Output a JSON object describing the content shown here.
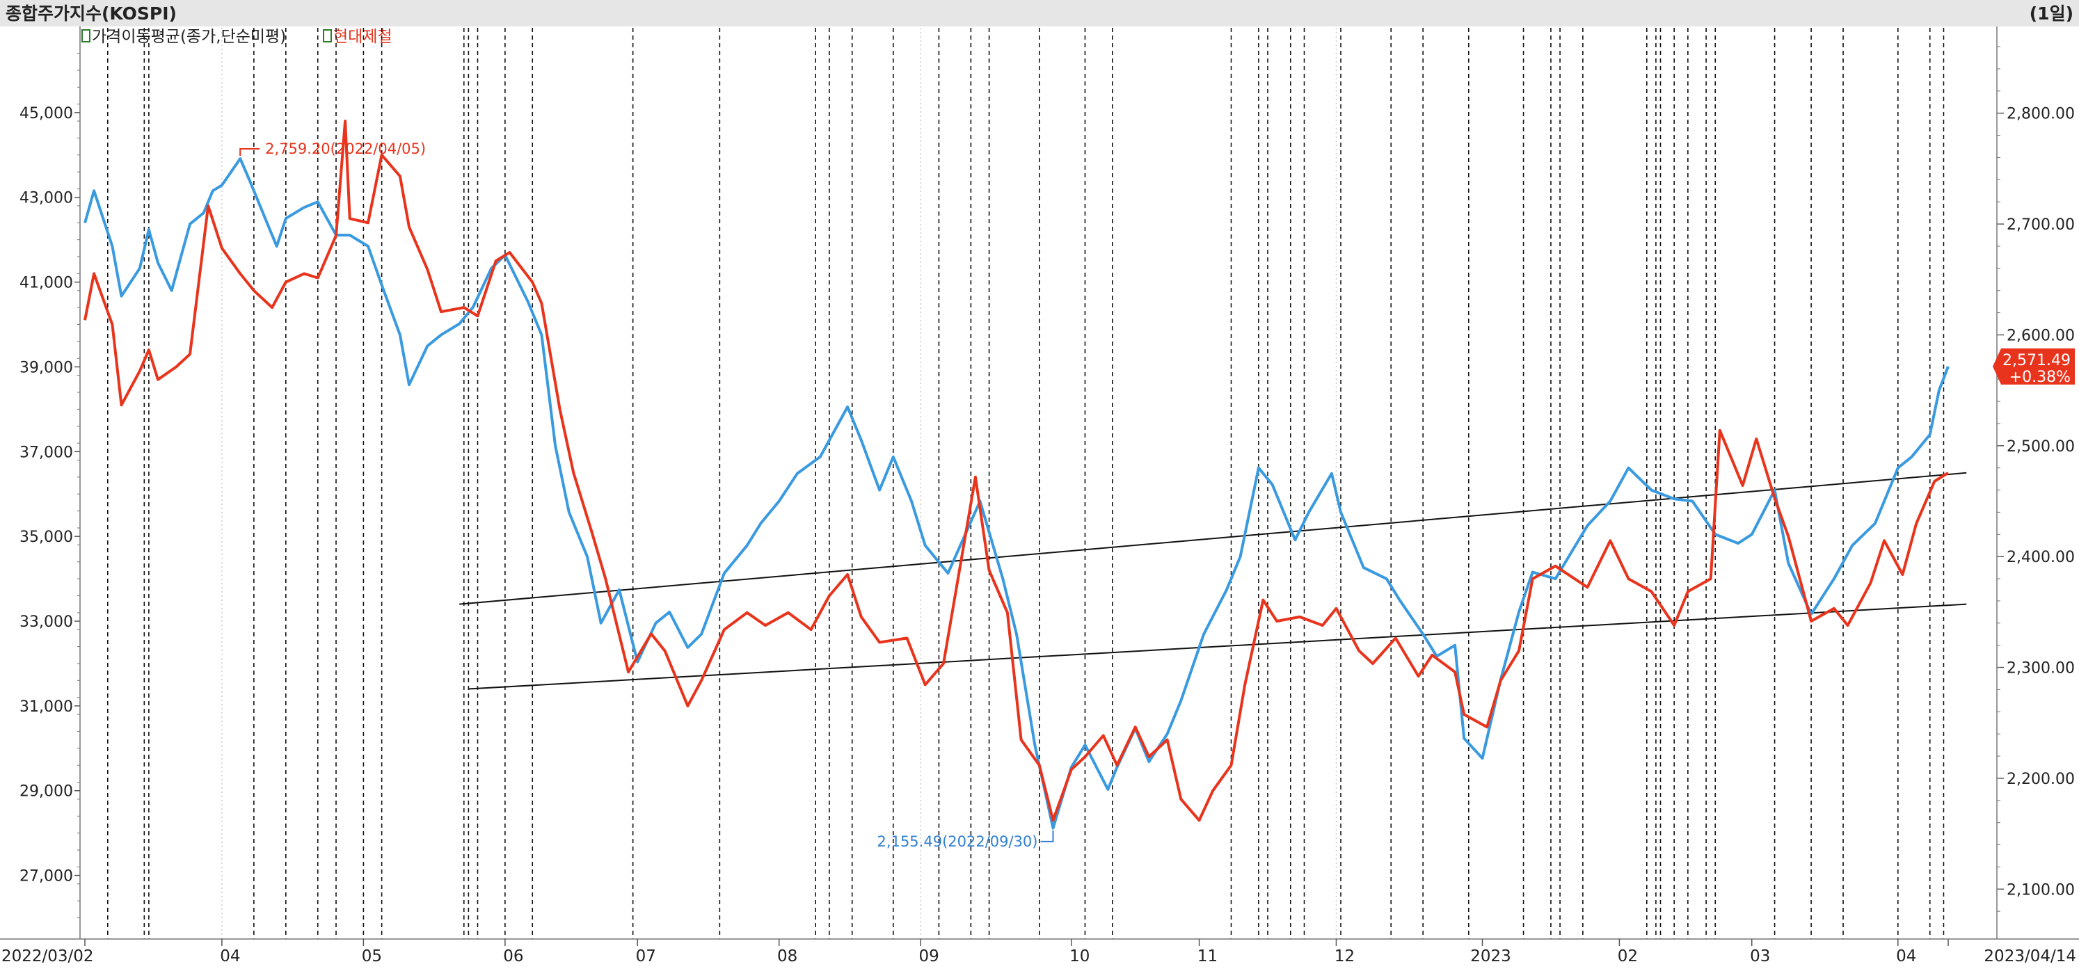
{
  "header": {
    "title": "종합주가지수(KOSPI)",
    "period": "(1일)",
    "legend_ma": "가격이동평균(종가,단순미평)",
    "legend_stock": "현대제철"
  },
  "annotations": {
    "high_label": "2,759.20(2022/04/05)",
    "low_label": "2,155.49(2022/09/30)",
    "price_tag_value": "2,571.49",
    "price_tag_change": "+0.38%"
  },
  "axis": {
    "start_date": "2022/03/02",
    "end_date": "2023/04/14"
  },
  "colors": {
    "kospi": "#3a9ae0",
    "stock": "#e8341c",
    "high_label": "#e8341c",
    "low_label": "#2f7fd3",
    "tag_bg": "#e8341c",
    "header_bg": "#e6e6e6"
  },
  "chart_data": {
    "type": "line",
    "title": "종합주가지수(KOSPI)",
    "x_range": [
      "2022/03/02",
      "2023/04/14"
    ],
    "y_left": {
      "ticks": [
        "27,000",
        "29,000",
        "31,000",
        "33,000",
        "35,000",
        "37,000",
        "39,000",
        "41,000",
        "43,000",
        "45,000"
      ],
      "ylim": [
        25500,
        47000
      ]
    },
    "y_right": {
      "ticks": [
        "2,100.00",
        "2,200.00",
        "2,300.00",
        "2,400.00",
        "2,500.00",
        "2,600.00",
        "2,700.00",
        "2,800.00"
      ],
      "ylim": [
        2055,
        2877
      ]
    },
    "x_ticks": [
      {
        "label": "2022/03/02",
        "date": "2022-03-02"
      },
      {
        "label": "04",
        "date": "2022-04-01"
      },
      {
        "label": "05",
        "date": "2022-05-02"
      },
      {
        "label": "06",
        "date": "2022-06-02"
      },
      {
        "label": "07",
        "date": "2022-07-01"
      },
      {
        "label": "08",
        "date": "2022-08-01"
      },
      {
        "label": "09",
        "date": "2022-09-01"
      },
      {
        "label": "10",
        "date": "2022-10-04"
      },
      {
        "label": "11",
        "date": "2022-11-01"
      },
      {
        "label": "12",
        "date": "2022-12-01"
      },
      {
        "label": "2023",
        "date": "2023-01-02"
      },
      {
        "label": "02",
        "date": "2023-02-01"
      },
      {
        "label": "03",
        "date": "2023-03-02"
      },
      {
        "label": "04",
        "date": "2023-04-03"
      },
      {
        "label": "2023/04/14",
        "date": "2023-04-14"
      }
    ],
    "series": [
      {
        "name": "종합주가지수(KOSPI)",
        "axis": "right",
        "points": [
          [
            "2022-03-02",
            2701
          ],
          [
            "2022-03-04",
            2730
          ],
          [
            "2022-03-08",
            2680
          ],
          [
            "2022-03-10",
            2635
          ],
          [
            "2022-03-14",
            2660
          ],
          [
            "2022-03-16",
            2695
          ],
          [
            "2022-03-18",
            2665
          ],
          [
            "2022-03-21",
            2640
          ],
          [
            "2022-03-23",
            2670
          ],
          [
            "2022-03-25",
            2700
          ],
          [
            "2022-03-28",
            2710
          ],
          [
            "2022-03-30",
            2730
          ],
          [
            "2022-04-01",
            2735
          ],
          [
            "2022-04-05",
            2759
          ],
          [
            "2022-04-07",
            2740
          ],
          [
            "2022-04-11",
            2700
          ],
          [
            "2022-04-13",
            2680
          ],
          [
            "2022-04-15",
            2705
          ],
          [
            "2022-04-19",
            2715
          ],
          [
            "2022-04-22",
            2720
          ],
          [
            "2022-04-26",
            2690
          ],
          [
            "2022-04-29",
            2690
          ],
          [
            "2022-05-03",
            2680
          ],
          [
            "2022-05-06",
            2645
          ],
          [
            "2022-05-10",
            2600
          ],
          [
            "2022-05-12",
            2555
          ],
          [
            "2022-05-16",
            2590
          ],
          [
            "2022-05-19",
            2600
          ],
          [
            "2022-05-23",
            2610
          ],
          [
            "2022-05-26",
            2625
          ],
          [
            "2022-05-30",
            2660
          ],
          [
            "2022-06-02",
            2672
          ],
          [
            "2022-06-07",
            2630
          ],
          [
            "2022-06-10",
            2600
          ],
          [
            "2022-06-13",
            2500
          ],
          [
            "2022-06-16",
            2440
          ],
          [
            "2022-06-20",
            2400
          ],
          [
            "2022-06-23",
            2340
          ],
          [
            "2022-06-27",
            2370
          ],
          [
            "2022-07-01",
            2305
          ],
          [
            "2022-07-05",
            2340
          ],
          [
            "2022-07-08",
            2350
          ],
          [
            "2022-07-12",
            2318
          ],
          [
            "2022-07-15",
            2330
          ],
          [
            "2022-07-20",
            2385
          ],
          [
            "2022-07-25",
            2410
          ],
          [
            "2022-07-28",
            2430
          ],
          [
            "2022-08-01",
            2450
          ],
          [
            "2022-08-05",
            2475
          ],
          [
            "2022-08-10",
            2490
          ],
          [
            "2022-08-16",
            2535
          ],
          [
            "2022-08-19",
            2505
          ],
          [
            "2022-08-23",
            2460
          ],
          [
            "2022-08-26",
            2490
          ],
          [
            "2022-08-30",
            2450
          ],
          [
            "2022-09-02",
            2410
          ],
          [
            "2022-09-07",
            2385
          ],
          [
            "2022-09-14",
            2450
          ],
          [
            "2022-09-19",
            2380
          ],
          [
            "2022-09-22",
            2330
          ],
          [
            "2022-09-26",
            2230
          ],
          [
            "2022-09-30",
            2155
          ],
          [
            "2022-10-04",
            2210
          ],
          [
            "2022-10-07",
            2230
          ],
          [
            "2022-10-12",
            2190
          ],
          [
            "2022-10-14",
            2210
          ],
          [
            "2022-10-18",
            2245
          ],
          [
            "2022-10-21",
            2215
          ],
          [
            "2022-10-25",
            2240
          ],
          [
            "2022-10-28",
            2270
          ],
          [
            "2022-11-02",
            2330
          ],
          [
            "2022-11-07",
            2370
          ],
          [
            "2022-11-10",
            2400
          ],
          [
            "2022-11-14",
            2480
          ],
          [
            "2022-11-17",
            2465
          ],
          [
            "2022-11-22",
            2415
          ],
          [
            "2022-11-25",
            2440
          ],
          [
            "2022-11-30",
            2475
          ],
          [
            "2022-12-02",
            2440
          ],
          [
            "2022-12-07",
            2390
          ],
          [
            "2022-12-12",
            2380
          ],
          [
            "2022-12-15",
            2360
          ],
          [
            "2022-12-20",
            2330
          ],
          [
            "2022-12-23",
            2310
          ],
          [
            "2022-12-27",
            2320
          ],
          [
            "2022-12-29",
            2236
          ],
          [
            "2023-01-02",
            2218
          ],
          [
            "2023-01-06",
            2289
          ],
          [
            "2023-01-10",
            2350
          ],
          [
            "2023-01-13",
            2386
          ],
          [
            "2023-01-18",
            2380
          ],
          [
            "2023-01-25",
            2428
          ],
          [
            "2023-01-30",
            2450
          ],
          [
            "2023-02-03",
            2480
          ],
          [
            "2023-02-08",
            2460
          ],
          [
            "2023-02-13",
            2452
          ],
          [
            "2023-02-17",
            2450
          ],
          [
            "2023-02-22",
            2420
          ],
          [
            "2023-02-27",
            2412
          ],
          [
            "2023-03-02",
            2420
          ],
          [
            "2023-03-07",
            2460
          ],
          [
            "2023-03-10",
            2394
          ],
          [
            "2023-03-15",
            2348
          ],
          [
            "2023-03-20",
            2380
          ],
          [
            "2023-03-24",
            2410
          ],
          [
            "2023-03-29",
            2430
          ],
          [
            "2023-04-03",
            2480
          ],
          [
            "2023-04-06",
            2490
          ],
          [
            "2023-04-10",
            2510
          ],
          [
            "2023-04-12",
            2550
          ],
          [
            "2023-04-14",
            2571.49
          ]
        ]
      },
      {
        "name": "현대제철",
        "axis": "left",
        "points": [
          [
            "2022-03-02",
            40100
          ],
          [
            "2022-03-04",
            41200
          ],
          [
            "2022-03-08",
            40000
          ],
          [
            "2022-03-10",
            38100
          ],
          [
            "2022-03-14",
            38900
          ],
          [
            "2022-03-16",
            39400
          ],
          [
            "2022-03-18",
            38700
          ],
          [
            "2022-03-22",
            39000
          ],
          [
            "2022-03-25",
            39300
          ],
          [
            "2022-03-29",
            42800
          ],
          [
            "2022-04-01",
            41800
          ],
          [
            "2022-04-05",
            41200
          ],
          [
            "2022-04-08",
            40800
          ],
          [
            "2022-04-12",
            40400
          ],
          [
            "2022-04-15",
            41000
          ],
          [
            "2022-04-19",
            41200
          ],
          [
            "2022-04-22",
            41100
          ],
          [
            "2022-04-26",
            42100
          ],
          [
            "2022-04-28",
            44800
          ],
          [
            "2022-04-29",
            42500
          ],
          [
            "2022-05-03",
            42400
          ],
          [
            "2022-05-06",
            44000
          ],
          [
            "2022-05-10",
            43500
          ],
          [
            "2022-05-12",
            42300
          ],
          [
            "2022-05-16",
            41300
          ],
          [
            "2022-05-19",
            40300
          ],
          [
            "2022-05-24",
            40400
          ],
          [
            "2022-05-27",
            40200
          ],
          [
            "2022-05-31",
            41500
          ],
          [
            "2022-06-03",
            41700
          ],
          [
            "2022-06-08",
            41000
          ],
          [
            "2022-06-10",
            40500
          ],
          [
            "2022-06-14",
            38000
          ],
          [
            "2022-06-17",
            36500
          ],
          [
            "2022-06-21",
            35100
          ],
          [
            "2022-06-24",
            34000
          ],
          [
            "2022-06-29",
            31800
          ],
          [
            "2022-07-04",
            32700
          ],
          [
            "2022-07-07",
            32300
          ],
          [
            "2022-07-12",
            31000
          ],
          [
            "2022-07-15",
            31600
          ],
          [
            "2022-07-20",
            32800
          ],
          [
            "2022-07-25",
            33200
          ],
          [
            "2022-07-29",
            32900
          ],
          [
            "2022-08-03",
            33200
          ],
          [
            "2022-08-08",
            32800
          ],
          [
            "2022-08-12",
            33600
          ],
          [
            "2022-08-16",
            34100
          ],
          [
            "2022-08-19",
            33100
          ],
          [
            "2022-08-23",
            32500
          ],
          [
            "2022-08-29",
            32600
          ],
          [
            "2022-09-02",
            31500
          ],
          [
            "2022-09-06",
            32000
          ],
          [
            "2022-09-13",
            36400
          ],
          [
            "2022-09-16",
            34200
          ],
          [
            "2022-09-20",
            33200
          ],
          [
            "2022-09-23",
            30200
          ],
          [
            "2022-09-27",
            29600
          ],
          [
            "2022-09-30",
            28300
          ],
          [
            "2022-10-04",
            29500
          ],
          [
            "2022-10-07",
            29800
          ],
          [
            "2022-10-11",
            30300
          ],
          [
            "2022-10-14",
            29600
          ],
          [
            "2022-10-18",
            30500
          ],
          [
            "2022-10-21",
            29800
          ],
          [
            "2022-10-25",
            30200
          ],
          [
            "2022-10-28",
            28800
          ],
          [
            "2022-11-01",
            28300
          ],
          [
            "2022-11-04",
            29000
          ],
          [
            "2022-11-08",
            29600
          ],
          [
            "2022-11-11",
            31500
          ],
          [
            "2022-11-15",
            33500
          ],
          [
            "2022-11-18",
            33000
          ],
          [
            "2022-11-23",
            33100
          ],
          [
            "2022-11-28",
            32900
          ],
          [
            "2022-12-01",
            33300
          ],
          [
            "2022-12-06",
            32300
          ],
          [
            "2022-12-09",
            32000
          ],
          [
            "2022-12-14",
            32600
          ],
          [
            "2022-12-19",
            31700
          ],
          [
            "2022-12-22",
            32200
          ],
          [
            "2022-12-27",
            31800
          ],
          [
            "2022-12-29",
            30800
          ],
          [
            "2023-01-03",
            30500
          ],
          [
            "2023-01-06",
            31600
          ],
          [
            "2023-01-10",
            32300
          ],
          [
            "2023-01-13",
            34000
          ],
          [
            "2023-01-18",
            34300
          ],
          [
            "2023-01-25",
            33800
          ],
          [
            "2023-01-30",
            34900
          ],
          [
            "2023-02-03",
            34000
          ],
          [
            "2023-02-08",
            33700
          ],
          [
            "2023-02-13",
            32900
          ],
          [
            "2023-02-16",
            33700
          ],
          [
            "2023-02-21",
            34000
          ],
          [
            "2023-02-23",
            37500
          ],
          [
            "2023-02-28",
            36200
          ],
          [
            "2023-03-03",
            37300
          ],
          [
            "2023-03-07",
            35900
          ],
          [
            "2023-03-10",
            35000
          ],
          [
            "2023-03-15",
            33000
          ],
          [
            "2023-03-20",
            33300
          ],
          [
            "2023-03-23",
            32900
          ],
          [
            "2023-03-28",
            33900
          ],
          [
            "2023-03-31",
            34900
          ],
          [
            "2023-04-04",
            34100
          ],
          [
            "2023-04-07",
            35300
          ],
          [
            "2023-04-11",
            36300
          ],
          [
            "2023-04-14",
            36500
          ]
        ]
      }
    ],
    "trendlines": [
      {
        "axis": "left",
        "from": [
          "2022-05-23",
          33400
        ],
        "to": [
          "2023-04-18",
          36500
        ]
      },
      {
        "axis": "left",
        "from": [
          "2022-05-25",
          31400
        ],
        "to": [
          "2023-04-18",
          33400
        ]
      }
    ],
    "event_dates": [
      "2022-03-07",
      "2022-03-15",
      "2022-03-16",
      "2022-04-08",
      "2022-04-15",
      "2022-04-22",
      "2022-04-26",
      "2022-05-02",
      "2022-05-06",
      "2022-05-24",
      "2022-05-25",
      "2022-05-27",
      "2022-06-02",
      "2022-06-08",
      "2022-06-30",
      "2022-07-19",
      "2022-08-09",
      "2022-08-12",
      "2022-08-17",
      "2022-08-26",
      "2022-09-05",
      "2022-09-12",
      "2022-09-16",
      "2022-09-27",
      "2022-10-07",
      "2022-10-13",
      "2022-11-08",
      "2022-11-14",
      "2022-11-16",
      "2022-11-21",
      "2022-11-24",
      "2022-12-02",
      "2022-12-13",
      "2022-12-20",
      "2022-12-30",
      "2023-01-11",
      "2023-01-17",
      "2023-01-19",
      "2023-01-24",
      "2023-02-07",
      "2023-02-09",
      "2023-02-10",
      "2023-02-13",
      "2023-02-16",
      "2023-02-20",
      "2023-02-22",
      "2023-03-07",
      "2023-03-15",
      "2023-03-22",
      "2023-04-03",
      "2023-04-10",
      "2023-04-13"
    ],
    "minor_grid_dates": [
      "2022-04-01",
      "2022-09-01",
      "2022-12-01"
    ]
  }
}
